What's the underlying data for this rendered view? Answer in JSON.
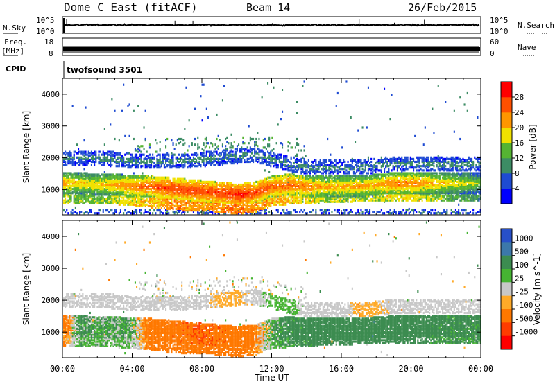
{
  "header": {
    "title": "Dome C East (fitACF)",
    "beam": "Beam 14",
    "date": "26/Feb/2015"
  },
  "noise_panel": {
    "left_label": "N.Sky",
    "right_label": "N.Search",
    "left_ticks": [
      "10^5",
      "10^0"
    ],
    "right_ticks": [
      "10^5",
      "10^0"
    ]
  },
  "freq_panel": {
    "left_label_1": "Freq.",
    "left_label_2": "[MHz]",
    "right_label": "Nave",
    "left_ticks": [
      "18",
      "8"
    ],
    "right_ticks": [
      "60",
      "0"
    ]
  },
  "cpid": {
    "label": "CPID",
    "value": "twofsound 3501"
  },
  "colors": {
    "power_scale": [
      "#0000ff",
      "#1e4bd2",
      "#3c8c64",
      "#55b432",
      "#f0e100",
      "#ff9600",
      "#ff5000",
      "#ff0000"
    ],
    "velocity_scale": [
      "#2850c8",
      "#3c78aa",
      "#3c8c50",
      "#46b432",
      "#c8c8c8",
      "#ffaa28",
      "#ff7800",
      "#ff3c00",
      "#ff0000"
    ]
  },
  "chart_data": [
    {
      "type": "heatmap",
      "name": "power",
      "ylabel": "Slant Range [km]",
      "ylim": [
        200,
        4500
      ],
      "yticks": [
        "1000",
        "2000",
        "3000",
        "4000"
      ],
      "colorbar_label": "Power [dB]",
      "colorbar_ticks": [
        "4",
        "8",
        "12",
        "16",
        "20",
        "24",
        "28"
      ],
      "x_hours": [
        0,
        1,
        2,
        3,
        4,
        5,
        6,
        7,
        8,
        9,
        10,
        11,
        12,
        13,
        14,
        15,
        16,
        17,
        18,
        19,
        20,
        21,
        22,
        23,
        24
      ],
      "band_main_center_km": [
        1200,
        1200,
        1150,
        1150,
        1100,
        1100,
        1050,
        1000,
        950,
        900,
        850,
        900,
        1100,
        1150,
        1100,
        1100,
        1100,
        1100,
        1150,
        1200,
        1200,
        1200,
        1200,
        1200,
        1200
      ],
      "band_main_peak_db": [
        22,
        20,
        20,
        22,
        24,
        26,
        28,
        28,
        28,
        28,
        30,
        28,
        26,
        26,
        24,
        22,
        22,
        22,
        22,
        24,
        24,
        22,
        20,
        18,
        16
      ],
      "band_upper_center_km": [
        2000,
        2000,
        2000,
        1950,
        1900,
        1900,
        1900,
        1900,
        1950,
        2000,
        2050,
        2100,
        1950,
        1800,
        1700,
        1700,
        1700,
        1700,
        1750,
        1800,
        1800,
        1800,
        1800,
        1800,
        1800
      ],
      "band_lower_center_km": [
        700,
        700,
        700,
        700,
        650,
        600,
        550,
        500,
        500,
        450,
        400,
        450,
        650,
        700,
        700,
        750,
        750,
        800,
        800,
        800,
        800,
        800,
        800,
        800,
        800
      ]
    },
    {
      "type": "heatmap",
      "name": "velocity",
      "xlabel": "Time UT",
      "ylabel": "Slant Range [km]",
      "ylim": [
        200,
        4500
      ],
      "yticks": [
        "1000",
        "2000",
        "3000",
        "4000"
      ],
      "xticks": [
        "00:00",
        "04:00",
        "08:00",
        "12:00",
        "16:00",
        "20:00",
        "00:00"
      ],
      "colorbar_label": "Velocity [m s^-1]",
      "colorbar_ticks": [
        "1000",
        "500",
        "100",
        "25",
        "-25",
        "-100",
        "-500",
        "-1000"
      ],
      "x_hours": [
        0,
        1,
        2,
        3,
        4,
        5,
        6,
        7,
        8,
        9,
        10,
        11,
        12,
        13,
        14,
        15,
        16,
        17,
        18,
        19,
        20,
        21,
        22,
        23,
        24
      ],
      "band_main_velocity_ms": [
        -120,
        80,
        60,
        60,
        40,
        -150,
        -200,
        -250,
        -300,
        -250,
        -200,
        -100,
        60,
        120,
        150,
        180,
        180,
        180,
        200,
        200,
        200,
        150,
        120,
        120,
        100
      ],
      "band_upper_velocity_ms": [
        0,
        0,
        0,
        0,
        0,
        0,
        0,
        0,
        0,
        -40,
        -40,
        0,
        40,
        40,
        0,
        0,
        0,
        -40,
        -40,
        0,
        0,
        0,
        0,
        0,
        0
      ]
    }
  ]
}
